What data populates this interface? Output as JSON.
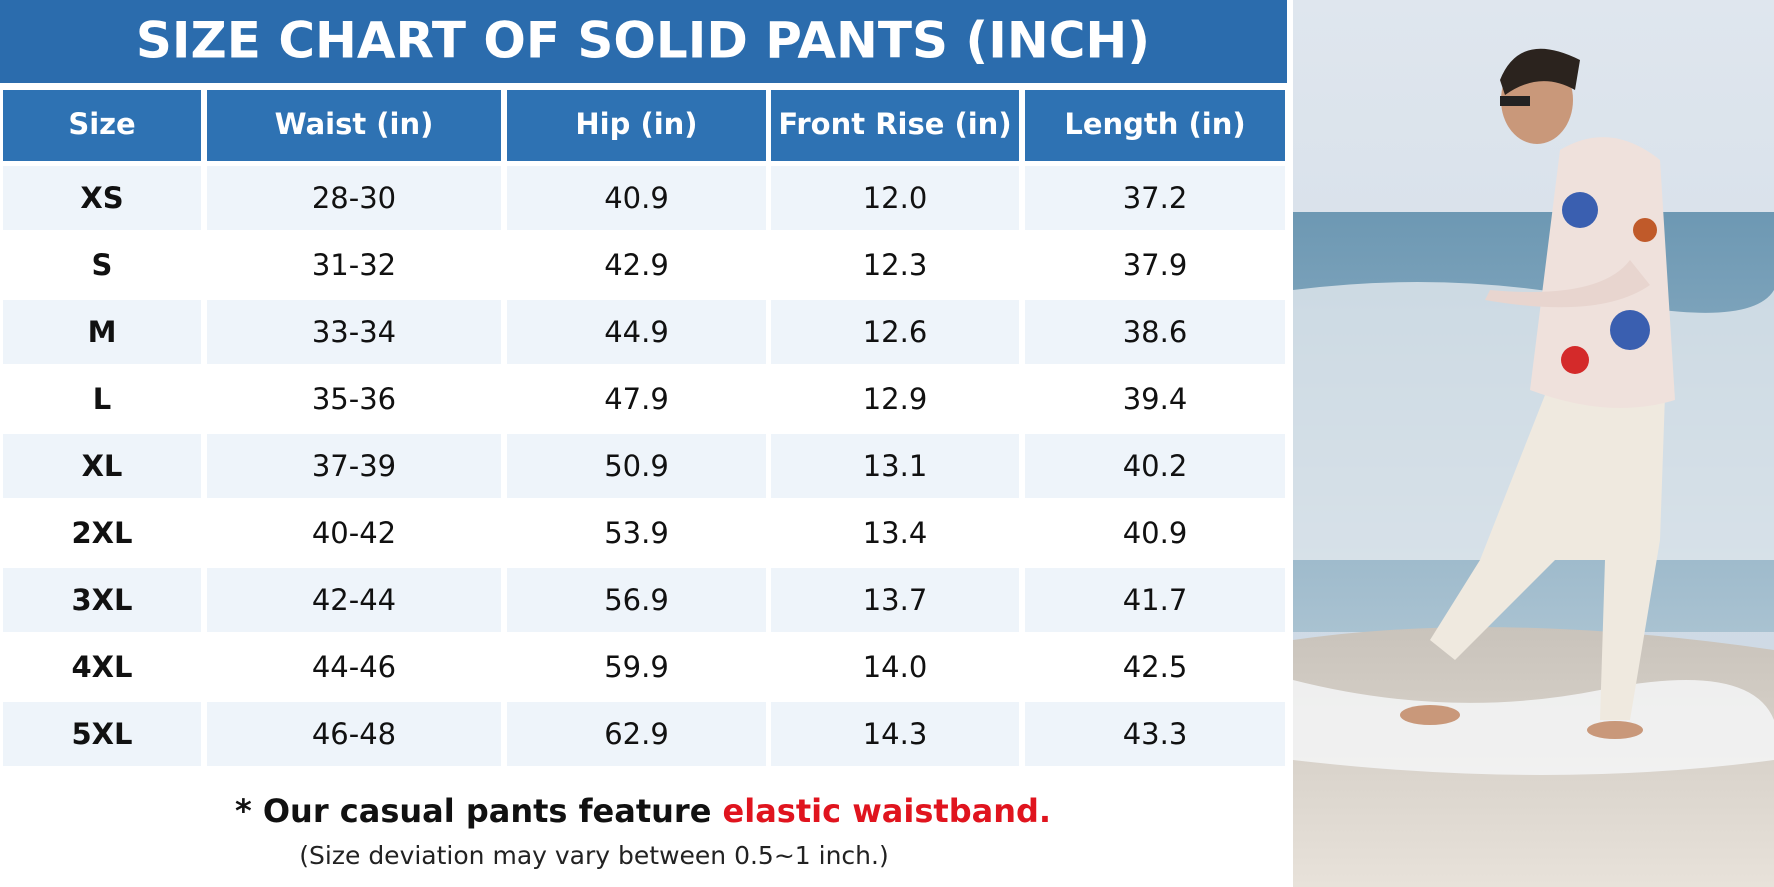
{
  "header": {
    "title": "SIZE CHART OF SOLID PANTS (INCH)"
  },
  "table": {
    "headers": [
      "Size",
      "Waist (in)",
      "Hip (in)",
      "Front Rise (in)",
      "Length (in)"
    ],
    "rows": [
      [
        "XS",
        "28-30",
        "40.9",
        "12.0",
        "37.2"
      ],
      [
        "S",
        "31-32",
        "42.9",
        "12.3",
        "37.9"
      ],
      [
        "M",
        "33-34",
        "44.9",
        "12.6",
        "38.6"
      ],
      [
        "L",
        "35-36",
        "47.9",
        "12.9",
        "39.4"
      ],
      [
        "XL",
        "37-39",
        "50.9",
        "13.1",
        "40.2"
      ],
      [
        "2XL",
        "40-42",
        "53.9",
        "13.4",
        "40.9"
      ],
      [
        "3XL",
        "42-44",
        "56.9",
        "13.7",
        "41.7"
      ],
      [
        "4XL",
        "44-46",
        "59.9",
        "14.0",
        "42.5"
      ],
      [
        "5XL",
        "46-48",
        "62.9",
        "14.3",
        "43.3"
      ]
    ]
  },
  "note": {
    "text": "* Our casual pants feature ",
    "highlight": "elastic waistband.",
    "subtext": "(Size deviation may vary between 0.5~1 inch.)"
  }
}
